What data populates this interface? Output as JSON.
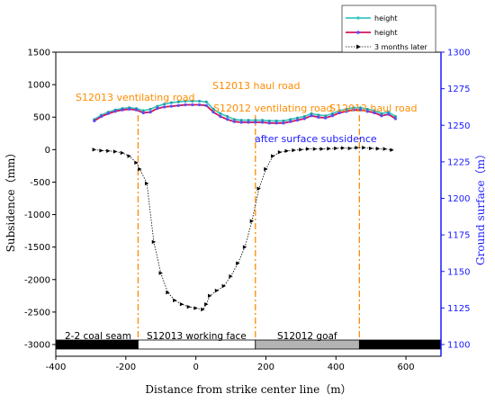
{
  "chart_data": {
    "type": "line",
    "xlabel": "Distance from strike center line（m）",
    "ylabel": "Subsidence（mm）",
    "y2label": "Ground surface（m）",
    "xlim": [
      -400,
      700
    ],
    "ylim": [
      -3100,
      1500
    ],
    "y2lim": [
      1100,
      1300
    ],
    "xticks": [
      "-400",
      "-200",
      "0",
      "200",
      "400",
      "600"
    ],
    "yticks": [
      "1500",
      "1000",
      "500",
      "0",
      "-500",
      "-1000",
      "-1500",
      "-2000",
      "-2500",
      "-3000"
    ],
    "y2ticks": [
      "1300",
      "1275",
      "1250",
      "1225",
      "1200",
      "1175",
      "1150",
      "1125",
      "1100"
    ],
    "legend": [
      "height",
      "height",
      "3 months later"
    ],
    "colors": {
      "height1": "#3cc7c7",
      "height2": "#d4145a",
      "height2_markers": "#5050ff",
      "subsidence": "#000000",
      "roads": "#ff8c00",
      "right_axis": "#1a1aff"
    },
    "series": [
      {
        "name": "height",
        "x": [
          -290,
          -270,
          -250,
          -230,
          -210,
          -190,
          -170,
          -150,
          -130,
          -110,
          -90,
          -70,
          -50,
          -30,
          -10,
          10,
          30,
          50,
          70,
          90,
          110,
          130,
          150,
          170,
          190,
          210,
          230,
          250,
          270,
          290,
          310,
          330,
          350,
          370,
          390,
          410,
          430,
          450,
          470,
          490,
          510,
          530,
          550,
          570
        ],
        "values": [
          1254,
          1257,
          1259,
          1260.5,
          1261.5,
          1262,
          1261.5,
          1260,
          1261,
          1263,
          1264.5,
          1265.5,
          1266,
          1266.5,
          1266.5,
          1266.5,
          1266,
          1261,
          1258,
          1256,
          1254,
          1253.5,
          1253.5,
          1253.5,
          1253.5,
          1253,
          1253,
          1253,
          1254,
          1255,
          1256,
          1258,
          1257,
          1256.5,
          1258,
          1260,
          1261,
          1262,
          1262,
          1261,
          1260,
          1258,
          1259,
          1256
        ]
      },
      {
        "name": "height",
        "x": [
          -290,
          -270,
          -250,
          -230,
          -210,
          -190,
          -170,
          -150,
          -130,
          -110,
          -90,
          -70,
          -50,
          -30,
          -10,
          10,
          30,
          50,
          70,
          90,
          110,
          130,
          150,
          170,
          190,
          210,
          230,
          250,
          270,
          290,
          310,
          330,
          350,
          370,
          390,
          410,
          430,
          450,
          470,
          490,
          510,
          530,
          550,
          570
        ],
        "values": [
          1253,
          1256,
          1258,
          1259.5,
          1260.5,
          1261,
          1260.5,
          1258.5,
          1259,
          1261.5,
          1262.5,
          1263,
          1263.5,
          1264,
          1264,
          1264,
          1263.5,
          1259,
          1256,
          1254,
          1252.5,
          1252,
          1252,
          1252,
          1252,
          1251.5,
          1251.5,
          1251.5,
          1252.5,
          1253.5,
          1254.5,
          1256.5,
          1255.5,
          1255,
          1256.5,
          1258.5,
          1259.5,
          1260.5,
          1260.5,
          1259.5,
          1258.5,
          1256.5,
          1257.5,
          1254.5
        ]
      },
      {
        "name": "3 months later",
        "x": [
          -290,
          -270,
          -250,
          -230,
          -210,
          -190,
          -170,
          -160,
          -140,
          -120,
          -100,
          -80,
          -60,
          -40,
          -20,
          0,
          20,
          30,
          40,
          60,
          80,
          100,
          120,
          140,
          160,
          180,
          200,
          220,
          240,
          260,
          280,
          300,
          320,
          340,
          360,
          380,
          400,
          420,
          440,
          460,
          480,
          500,
          520,
          540,
          560
        ],
        "values": [
          0,
          -15,
          -20,
          -30,
          -50,
          -100,
          -200,
          -300,
          -520,
          -1420,
          -1900,
          -2200,
          -2320,
          -2380,
          -2420,
          -2440,
          -2460,
          -2380,
          -2250,
          -2170,
          -2100,
          -1950,
          -1750,
          -1500,
          -1100,
          -600,
          -300,
          -100,
          -40,
          -20,
          -10,
          0,
          10,
          10,
          10,
          15,
          20,
          25,
          20,
          30,
          30,
          20,
          15,
          10,
          -5
        ]
      }
    ],
    "annotations": {
      "left_vent": "S12013 ventilating road",
      "left_haul": "S12013 haul road",
      "right_vent": "S12012 ventilating road",
      "right_haul": "S12012 haul road",
      "after": "after surface subsidence"
    },
    "roads_x": [
      -165,
      170,
      467
    ],
    "zones": [
      {
        "label": "2-2 coal seam",
        "from": -400,
        "to": -165,
        "fill": "#000000"
      },
      {
        "label": "S12013 working face",
        "from": -165,
        "to": 170,
        "fill": "#ffffff"
      },
      {
        "label": "S12012 goaf",
        "from": 170,
        "to": 467,
        "fill": "#b4b4b4"
      },
      {
        "label": "",
        "from": 467,
        "to": 700,
        "fill": "#000000"
      }
    ]
  }
}
